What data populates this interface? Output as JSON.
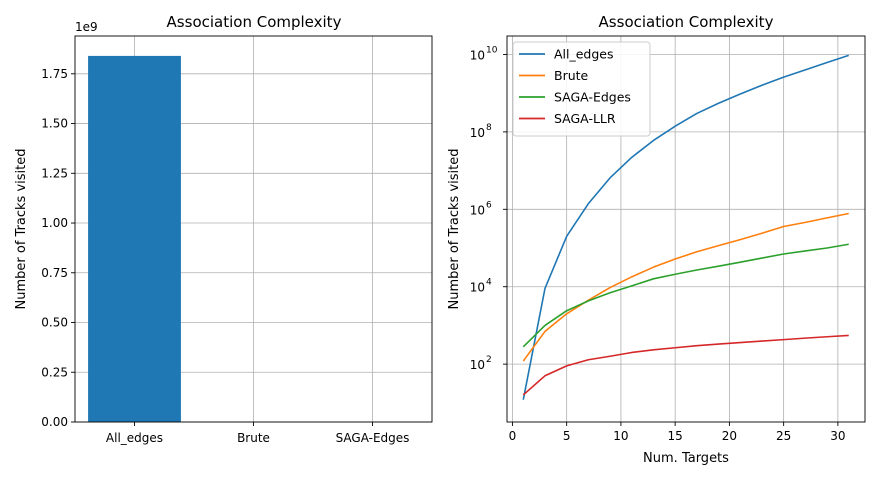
{
  "chart_data": [
    {
      "type": "bar",
      "title": "Association Complexity",
      "xlabel": "",
      "ylabel": "Number of Tracks visited",
      "offset_label": "1e9",
      "categories": [
        "All_edges",
        "Brute",
        "SAGA-Edges"
      ],
      "values": [
        1.84,
        0.0,
        0.0
      ],
      "value_scale": 1000000000,
      "ylim": [
        0,
        1.94
      ],
      "yticks": [
        "0.00",
        "0.25",
        "0.50",
        "0.75",
        "1.00",
        "1.25",
        "1.50",
        "1.75"
      ],
      "grid": true,
      "bar_color": "#1f77b4"
    },
    {
      "type": "line",
      "title": "Association Complexity",
      "xlabel": "Num. Targets",
      "ylabel": "Number of Tracks visited",
      "yscale": "log",
      "xlim": [
        -0.5,
        32.5
      ],
      "ylim": [
        3.2,
        30000000000
      ],
      "xticks": [
        "0",
        "5",
        "10",
        "15",
        "20",
        "25",
        "30"
      ],
      "yticks": [
        {
          "base": "10",
          "exp": "2",
          "value": 100
        },
        {
          "base": "10",
          "exp": "4",
          "value": 10000
        },
        {
          "base": "10",
          "exp": "6",
          "value": 1000000
        },
        {
          "base": "10",
          "exp": "8",
          "value": 100000000
        },
        {
          "base": "10",
          "exp": "10",
          "value": 10000000000
        }
      ],
      "grid": true,
      "legend": "top-left",
      "x": [
        1,
        3,
        5,
        7,
        9,
        11,
        13,
        15,
        17,
        19,
        21,
        23,
        25,
        27,
        29,
        31
      ],
      "series": [
        {
          "name": "All_edges",
          "color": "#1f77b4",
          "values": [
            12,
            9000,
            200000,
            1400000,
            6500000,
            22000000,
            60000000,
            140000000,
            300000000,
            550000000,
            950000000,
            1600000000,
            2600000000,
            4000000000,
            6200000000,
            9500000000
          ]
        },
        {
          "name": "Brute",
          "color": "#ff7f0e",
          "values": [
            120,
            700,
            2000,
            4500,
            9500,
            18000,
            32000,
            52000,
            80000,
            115000,
            165000,
            240000,
            360000,
            460000,
            600000,
            780000
          ]
        },
        {
          "name": "SAGA-Edges",
          "color": "#2ca02c",
          "values": [
            280,
            1000,
            2400,
            4300,
            7000,
            10500,
            16000,
            21000,
            27000,
            34000,
            43000,
            55000,
            70000,
            84000,
            100000,
            125000
          ]
        },
        {
          "name": "SAGA-LLR",
          "color": "#d62728",
          "values": [
            16,
            50,
            90,
            130,
            160,
            200,
            235,
            265,
            300,
            330,
            360,
            395,
            430,
            470,
            510,
            550
          ]
        }
      ]
    }
  ]
}
